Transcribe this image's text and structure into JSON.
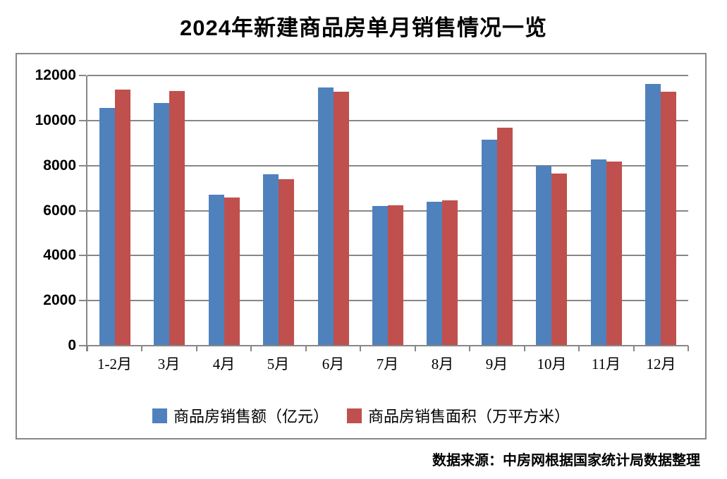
{
  "title": "2024年新建商品房单月销售情况一览",
  "source_note": "数据来源：中房网根据国家统计局数据整理",
  "colors": {
    "series_amount": "#4F81BD",
    "series_area": "#C0504D",
    "grid": "#878787",
    "text": "#000000",
    "background": "#FFFFFF"
  },
  "chart_data": {
    "type": "bar",
    "title": "2024年新建商品房单月销售情况一览",
    "categories": [
      "1-2月",
      "3月",
      "4月",
      "5月",
      "6月",
      "7月",
      "8月",
      "9月",
      "10月",
      "11月",
      "12月"
    ],
    "series": [
      {
        "name": "商品房销售额（亿元）",
        "color": "#4F81BD",
        "values": [
          10566,
          10789,
          6712,
          7598,
          11468,
          6197,
          6393,
          9157,
          7975,
          8270,
          11625
        ]
      },
      {
        "name": "商品房销售面积（万平方米）",
        "color": "#C0504D",
        "values": [
          11369,
          11299,
          6584,
          7390,
          11274,
          6233,
          6453,
          9682,
          7646,
          8188,
          11267
        ]
      }
    ],
    "xlabel": "",
    "ylabel": "",
    "ylim": [
      0,
      12000
    ],
    "ytick_step": 2000,
    "yticks": [
      0,
      2000,
      4000,
      6000,
      8000,
      10000,
      12000
    ],
    "grid": true,
    "legend_position": "bottom"
  }
}
